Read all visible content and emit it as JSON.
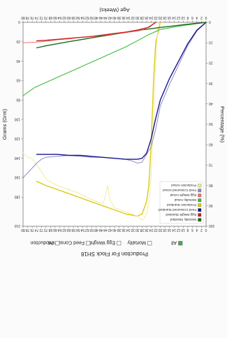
{
  "chart_data": {
    "type": "line",
    "title": "Production For Flock SH18",
    "filters": [
      {
        "label": "All",
        "checked": true
      },
      {
        "label": "Mortality",
        "checked": false
      },
      {
        "label": "Egg Weight",
        "checked": false
      },
      {
        "label": "Feed Consumed",
        "checked": false
      },
      {
        "label": "Production",
        "checked": false
      }
    ],
    "xlabel": "Age (Weeks)",
    "ylabel_left": "Percentage (%)",
    "ylabel_right": "Grams (Grm)",
    "xlim": [
      0,
      80
    ],
    "ylim_left": [
      0,
      100
    ],
    "ylim_right": [
      0,
      210
    ],
    "x_ticks": [
      0,
      2,
      4,
      6,
      8,
      10,
      12,
      14,
      16,
      18,
      20,
      22,
      24,
      26,
      28,
      30,
      32,
      34,
      36,
      38,
      40,
      42,
      44,
      46,
      48,
      50,
      52,
      54,
      56,
      58,
      60,
      62,
      64,
      66,
      68,
      70,
      72,
      74,
      76,
      78,
      80
    ],
    "y_left_ticks": [
      0,
      10,
      20,
      30,
      40,
      50,
      60,
      70,
      80,
      90,
      100
    ],
    "y_right_ticks": [
      0,
      20,
      40,
      60,
      80,
      100,
      120,
      140,
      160,
      180,
      210
    ],
    "grid": false,
    "legend_position": "top-left",
    "series": [
      {
        "name": "Mortality Standard",
        "axis": "left",
        "color": "#1a6b1a",
        "width": 1.4,
        "x": [
          0,
          10,
          20,
          30,
          40,
          50,
          60,
          70,
          74
        ],
        "y": [
          0,
          1.2,
          2.5,
          4,
          5.8,
          7.6,
          9.5,
          11.5,
          12.5
        ]
      },
      {
        "name": "Egg Weight Standard",
        "axis": "right",
        "color": "#cc1f1f",
        "width": 1.4,
        "x": [
          22,
          25,
          30,
          35,
          40,
          45,
          50,
          55,
          60,
          65,
          70,
          74
        ],
        "y": [
          0,
          5,
          8,
          10,
          11.5,
          13,
          14.5,
          15.5,
          16.5,
          17.5,
          18.5,
          19
        ]
      },
      {
        "name": "Feed Consumed Standard",
        "axis": "right",
        "color": "#16168c",
        "width": 1.4,
        "x": [
          0,
          4,
          8,
          12,
          16,
          20,
          22,
          24,
          26,
          28,
          30,
          35,
          40,
          45,
          50,
          55,
          60,
          65,
          70,
          74
        ],
        "y": [
          0,
          8,
          22,
          40,
          58,
          80,
          99,
          120,
          135,
          140,
          141,
          141,
          140,
          139,
          138,
          137,
          137,
          136,
          136,
          136
        ]
      },
      {
        "name": "Production Standard",
        "axis": "left",
        "color": "#dcc81a",
        "width": 1.4,
        "x": [
          20,
          22,
          23,
          24,
          25,
          26,
          28,
          30,
          35,
          40,
          45,
          50,
          55,
          60,
          65,
          70,
          74
        ],
        "y": [
          0,
          10,
          30,
          60,
          80,
          88,
          94,
          95,
          94,
          92,
          90,
          88,
          86,
          84,
          82,
          80,
          78
        ]
      },
      {
        "name": "Mortality Actual",
        "axis": "left",
        "color": "#3bbb3b",
        "width": 1.1,
        "x": [
          0,
          5,
          10,
          15,
          20,
          25,
          30,
          35,
          40,
          45,
          50,
          55,
          60,
          65,
          70,
          75,
          80
        ],
        "y": [
          0,
          0.8,
          1.5,
          2.5,
          3.5,
          6,
          9,
          12,
          14.5,
          17,
          19.5,
          22,
          24.5,
          27,
          29.5,
          32,
          36
        ]
      },
      {
        "name": "Egg Weight Actual",
        "axis": "right",
        "color": "#f07070",
        "width": 1.0,
        "x": [
          24,
          26,
          28,
          30,
          35,
          40,
          45,
          50,
          55,
          60,
          65,
          70,
          75,
          80
        ],
        "y": [
          3,
          6,
          8,
          9,
          10.5,
          12,
          13.5,
          14.5,
          15.5,
          17,
          18,
          19.5,
          20.5,
          21
        ]
      },
      {
        "name": "Feed Consumed Actual",
        "axis": "right",
        "color": "#8c8ccc",
        "width": 1.0,
        "x": [
          0,
          4,
          8,
          12,
          16,
          20,
          22,
          24,
          26,
          28,
          30,
          32,
          35,
          40,
          45,
          50,
          55,
          60,
          65,
          70,
          72,
          74,
          76,
          80
        ],
        "y": [
          0,
          9,
          24,
          44,
          64,
          86,
          110,
          128,
          136,
          144,
          145,
          143,
          141,
          140,
          139,
          139,
          138,
          137,
          138,
          139,
          141,
          145,
          150,
          160
        ]
      },
      {
        "name": "Production Actual",
        "axis": "left",
        "color": "#f2ec9c",
        "width": 1.0,
        "x": [
          21,
          22,
          23,
          24,
          25,
          26,
          27,
          28,
          29,
          30,
          35,
          40,
          42,
          43,
          44,
          45,
          50,
          55,
          60,
          65,
          70,
          72,
          74,
          76,
          78,
          80
        ],
        "y": [
          0,
          20,
          50,
          75,
          89,
          94,
          96,
          97,
          96,
          95,
          93,
          91,
          87,
          80,
          85,
          89,
          87,
          84,
          82,
          80,
          77,
          73,
          70,
          67,
          66,
          64
        ]
      }
    ]
  }
}
